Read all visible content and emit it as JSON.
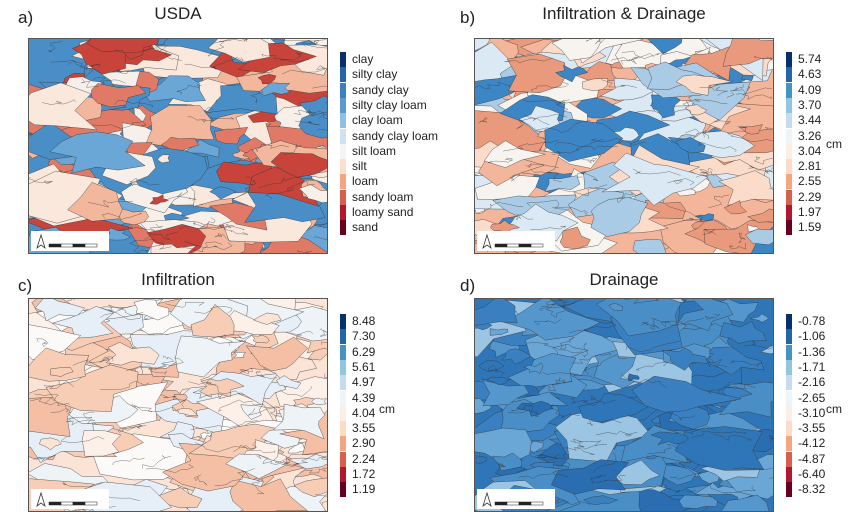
{
  "panels": [
    {
      "letter": "a)",
      "title": "USDA",
      "unit": "",
      "legend": [
        {
          "label": "clay",
          "color": "#08306b"
        },
        {
          "label": "silty clay",
          "color": "#2166ac"
        },
        {
          "label": "sandy clay",
          "color": "#3a7fc0"
        },
        {
          "label": "silty clay loam",
          "color": "#5b9ad0"
        },
        {
          "label": "clay loam",
          "color": "#92c0e0"
        },
        {
          "label": "sandy clay loam",
          "color": "#cfe2f0"
        },
        {
          "label": "silt loam",
          "color": "#f5f5f5"
        },
        {
          "label": "silt",
          "color": "#fbe0d0"
        },
        {
          "label": "loam",
          "color": "#f4a582"
        },
        {
          "label": "sandy loam",
          "color": "#d6604d"
        },
        {
          "label": "loamy sand",
          "color": "#b2182b"
        },
        {
          "label": "sand",
          "color": "#67001f"
        }
      ],
      "map_colors": [
        "#4a8ec8",
        "#6aa6d6",
        "#fbe8dc",
        "#f2b79c",
        "#e07a66",
        "#c8433a",
        "#f7f0ea"
      ]
    },
    {
      "letter": "b)",
      "title": "Infiltration & Drainage",
      "unit": "cm",
      "legend": [
        {
          "label": "5.74",
          "color": "#08306b"
        },
        {
          "label": "4.63",
          "color": "#2166ac"
        },
        {
          "label": "4.09",
          "color": "#4393c3"
        },
        {
          "label": "3.70",
          "color": "#92c5de"
        },
        {
          "label": "3.44",
          "color": "#c6dbef"
        },
        {
          "label": "3.26",
          "color": "#eef4fa"
        },
        {
          "label": "3.04",
          "color": "#fbeee6"
        },
        {
          "label": "2.81",
          "color": "#fddbc7"
        },
        {
          "label": "2.55",
          "color": "#f4a582"
        },
        {
          "label": "2.29",
          "color": "#d6604d"
        },
        {
          "label": "1.97",
          "color": "#b2182b"
        },
        {
          "label": "1.59",
          "color": "#67001f"
        }
      ],
      "map_colors": [
        "#f4b69a",
        "#fbdccb",
        "#dbe9f4",
        "#a9cbe6",
        "#3d86c6",
        "#f7f3ef",
        "#e99a7c"
      ]
    },
    {
      "letter": "c)",
      "title": "Infiltration",
      "unit": "cm",
      "legend": [
        {
          "label": "8.48",
          "color": "#08306b"
        },
        {
          "label": "7.30",
          "color": "#2166ac"
        },
        {
          "label": "6.29",
          "color": "#4393c3"
        },
        {
          "label": "5.61",
          "color": "#92c5de"
        },
        {
          "label": "4.97",
          "color": "#c6dbef"
        },
        {
          "label": "4.39",
          "color": "#eef4fa"
        },
        {
          "label": "4.04",
          "color": "#fbeee6"
        },
        {
          "label": "3.55",
          "color": "#fddbc7"
        },
        {
          "label": "2.90",
          "color": "#f4a582"
        },
        {
          "label": "2.24",
          "color": "#d6604d"
        },
        {
          "label": "1.72",
          "color": "#b2182b"
        },
        {
          "label": "1.19",
          "color": "#67001f"
        }
      ],
      "map_colors": [
        "#fbe3d6",
        "#f8cdb6",
        "#eef3f8",
        "#fdf0e8",
        "#f5bfa6",
        "#e6eff7",
        "#fbfaf8"
      ]
    },
    {
      "letter": "d)",
      "title": "Drainage",
      "unit": "cm",
      "legend": [
        {
          "label": "-0.78",
          "color": "#08306b"
        },
        {
          "label": "-1.06",
          "color": "#2166ac"
        },
        {
          "label": "-1.36",
          "color": "#4393c3"
        },
        {
          "label": "-1.71",
          "color": "#92c5de"
        },
        {
          "label": "-2.16",
          "color": "#c6dbef"
        },
        {
          "label": "-2.65",
          "color": "#eef4fa"
        },
        {
          "label": "-3.10",
          "color": "#fbeee6"
        },
        {
          "label": "-3.55",
          "color": "#fddbc7"
        },
        {
          "label": "-4.12",
          "color": "#f4a582"
        },
        {
          "label": "-4.87",
          "color": "#d6604d"
        },
        {
          "label": "-6.40",
          "color": "#b2182b"
        },
        {
          "label": "-8.32",
          "color": "#67001f"
        }
      ],
      "map_colors": [
        "#2f76b8",
        "#4a8ec8",
        "#3a80c0",
        "#6aa6d6",
        "#2a6db0",
        "#9cc4e3",
        "#5597cd"
      ]
    }
  ]
}
